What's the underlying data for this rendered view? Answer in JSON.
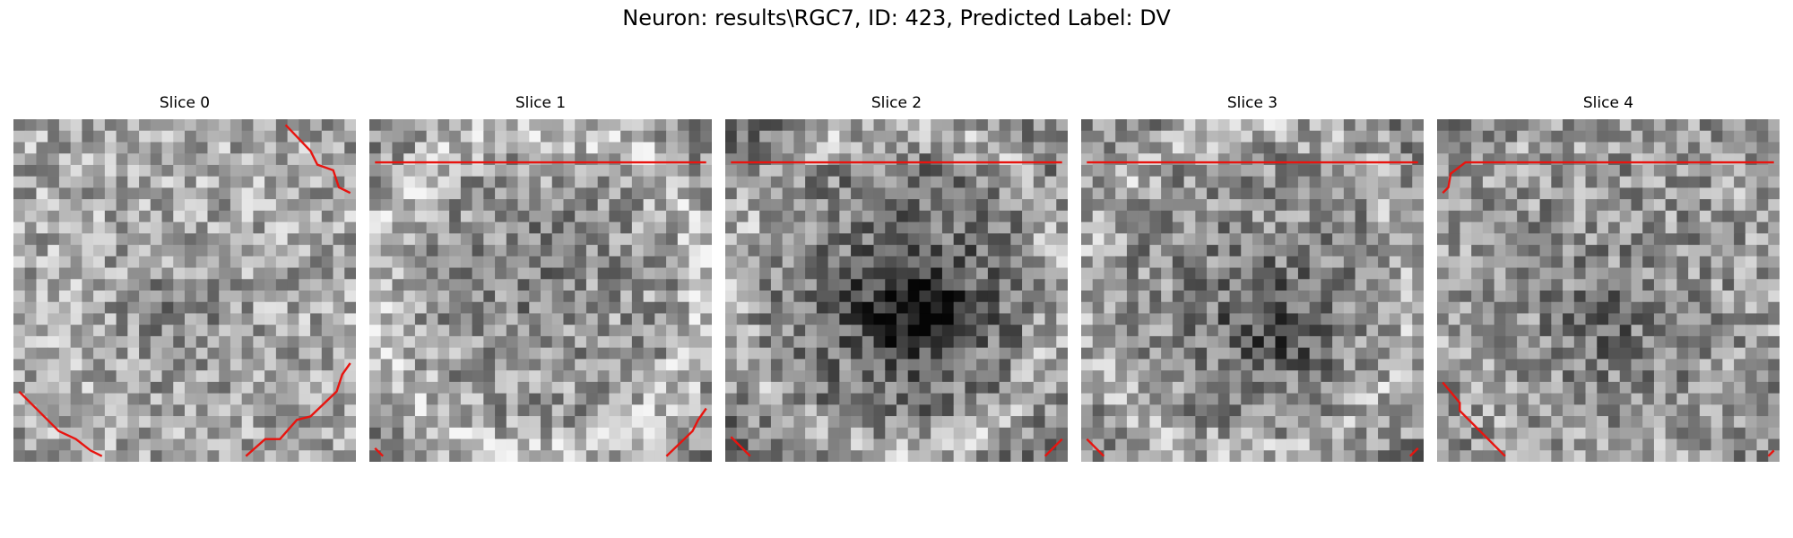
{
  "figure": {
    "title": "Neuron: results\\RGC7, ID: 423, Predicted Label: DV"
  },
  "slices": [
    {
      "label": "Slice 0"
    },
    {
      "label": "Slice 1"
    },
    {
      "label": "Slice 2"
    },
    {
      "label": "Slice 3"
    },
    {
      "label": "Slice 4"
    }
  ],
  "colors": {
    "contour": "#e8140f",
    "background": "#ffffff"
  }
}
